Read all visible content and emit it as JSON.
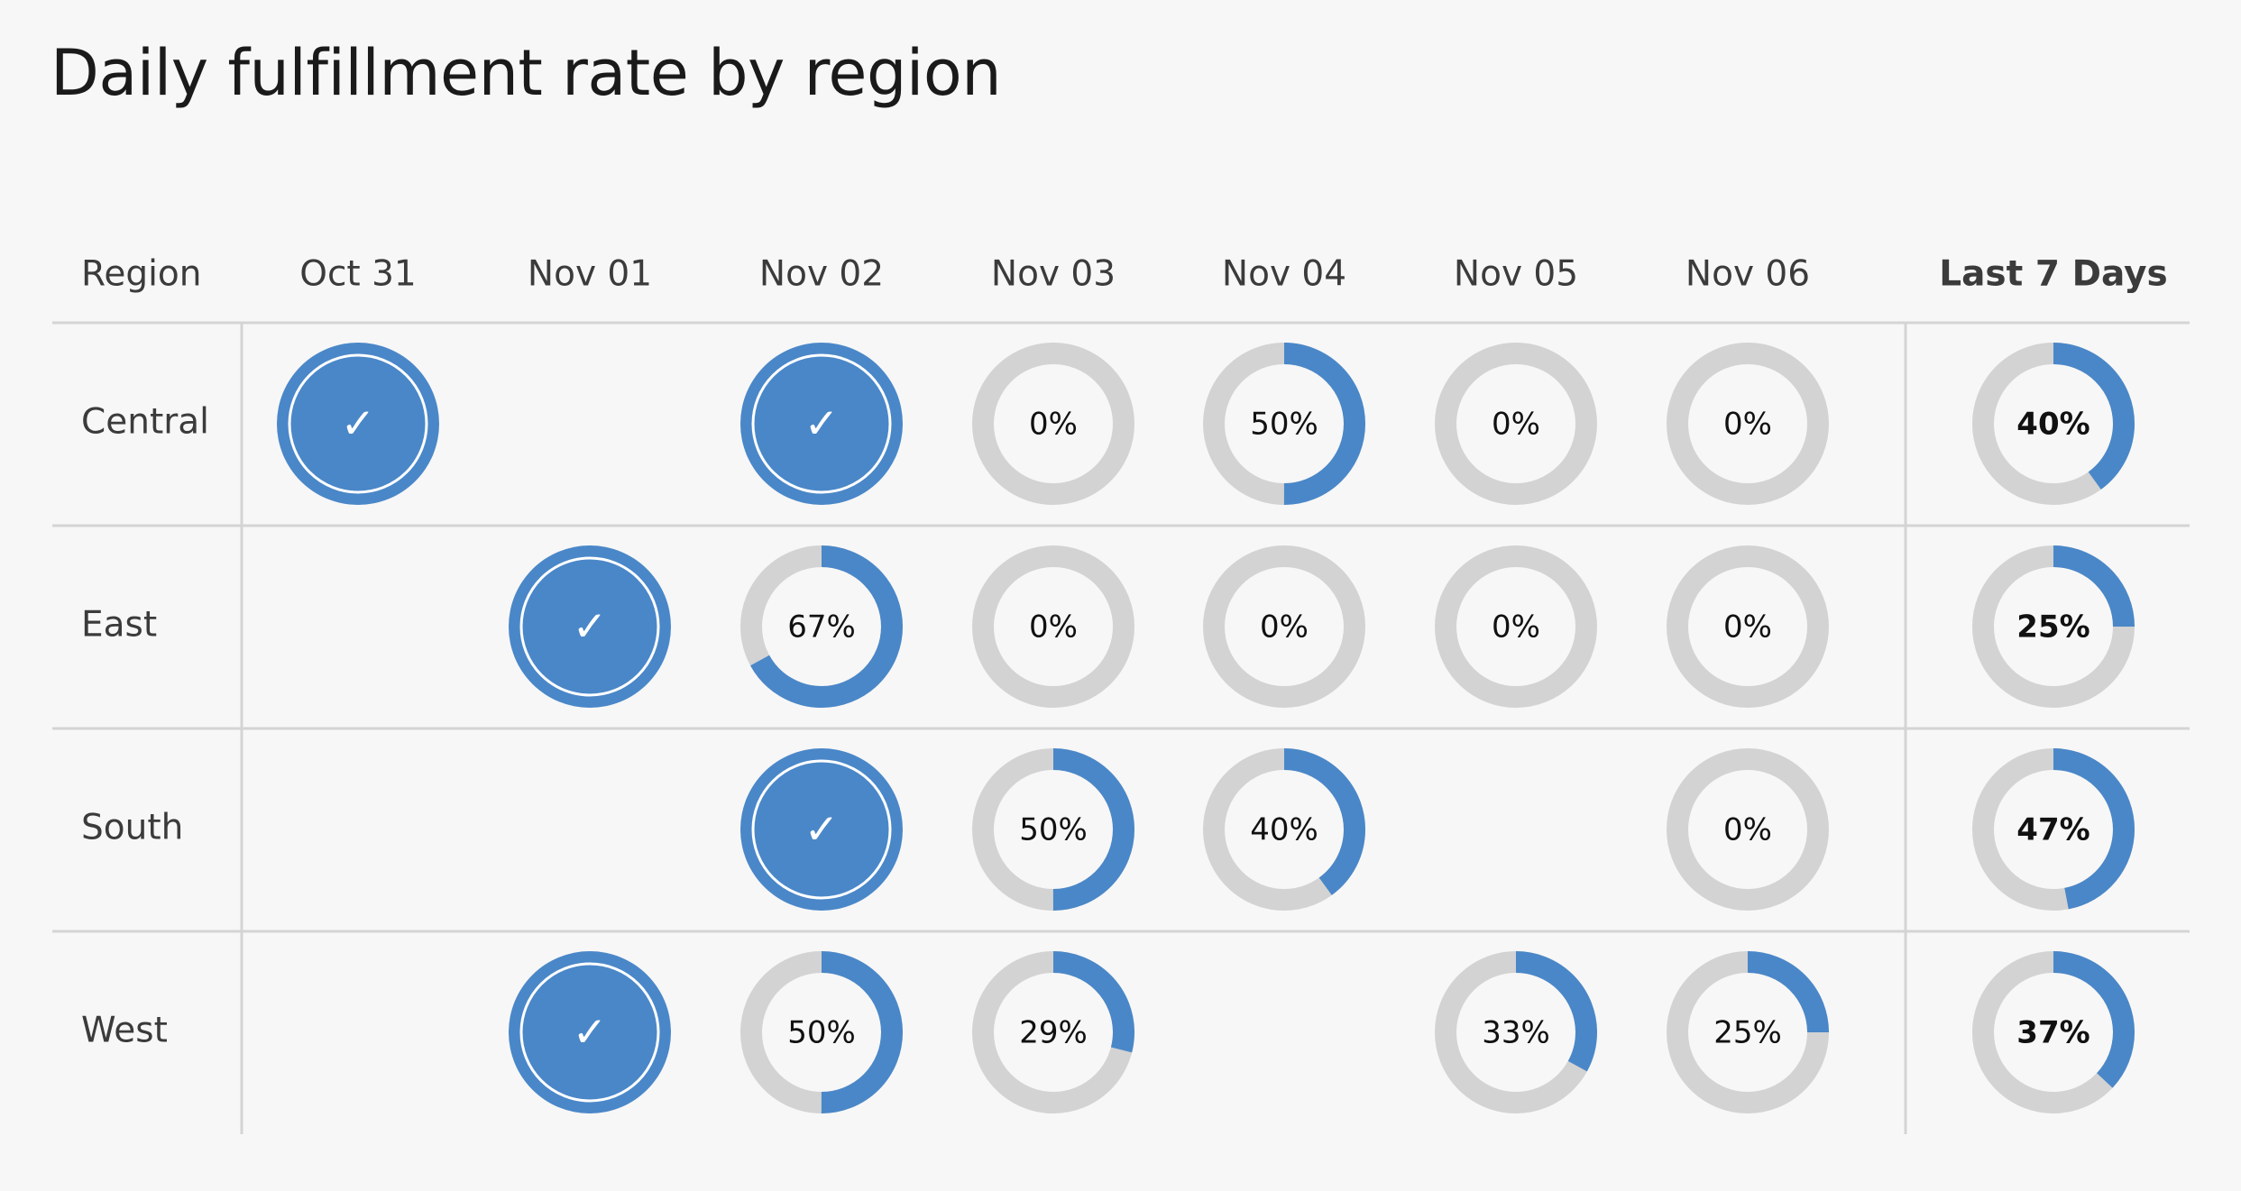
{
  "chart_data": {
    "type": "table",
    "title": "Daily fulfillment rate by region",
    "row_header": "Region",
    "columns": [
      "Oct 31",
      "Nov 01",
      "Nov 02",
      "Nov 03",
      "Nov 04",
      "Nov 05",
      "Nov 06"
    ],
    "total_header": "Last 7 Days",
    "rows": [
      {
        "region": "Central",
        "values": [
          {
            "value": 100,
            "label": "✓"
          },
          null,
          {
            "value": 100,
            "label": "✓"
          },
          {
            "value": 0,
            "label": "0%"
          },
          {
            "value": 50,
            "label": "50%"
          },
          {
            "value": 0,
            "label": "0%"
          },
          {
            "value": 0,
            "label": "0%"
          }
        ],
        "total": {
          "value": 40,
          "label": "40%"
        }
      },
      {
        "region": "East",
        "values": [
          null,
          {
            "value": 100,
            "label": "✓"
          },
          {
            "value": 67,
            "label": "67%"
          },
          {
            "value": 0,
            "label": "0%"
          },
          {
            "value": 0,
            "label": "0%"
          },
          {
            "value": 0,
            "label": "0%"
          },
          {
            "value": 0,
            "label": "0%"
          }
        ],
        "total": {
          "value": 25,
          "label": "25%"
        }
      },
      {
        "region": "South",
        "values": [
          null,
          null,
          {
            "value": 100,
            "label": "✓"
          },
          {
            "value": 50,
            "label": "50%"
          },
          {
            "value": 40,
            "label": "40%"
          },
          null,
          {
            "value": 0,
            "label": "0%"
          }
        ],
        "total": {
          "value": 47,
          "label": "47%"
        }
      },
      {
        "region": "West",
        "values": [
          null,
          {
            "value": 100,
            "label": "✓"
          },
          {
            "value": 50,
            "label": "50%"
          },
          {
            "value": 29,
            "label": "29%"
          },
          null,
          {
            "value": 33,
            "label": "33%"
          },
          {
            "value": 25,
            "label": "25%"
          }
        ],
        "total": {
          "value": 37,
          "label": "37%"
        }
      }
    ],
    "colors": {
      "fill": "#4a87c8",
      "track": "#d3d3d3",
      "grid": "#d4d4d4",
      "background": "#f7f7f7"
    }
  }
}
